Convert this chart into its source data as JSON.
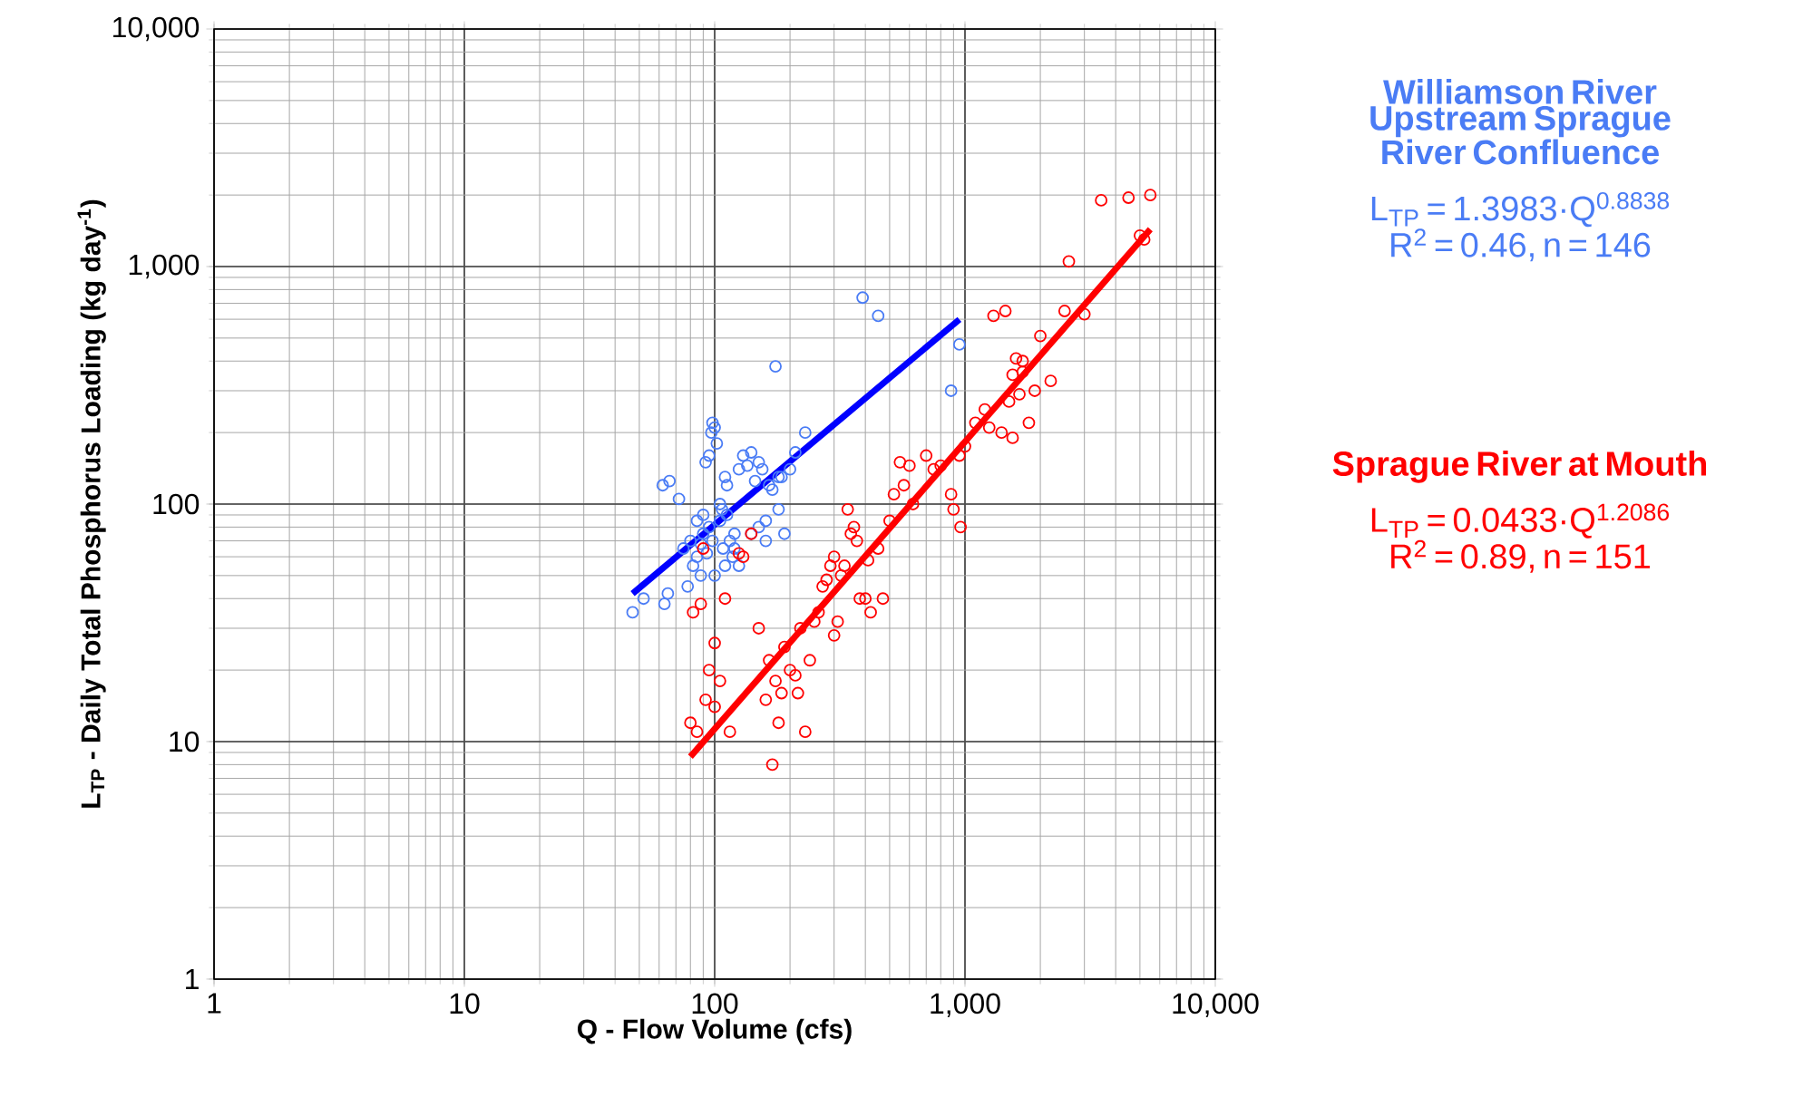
{
  "chart_data": {
    "type": "scatter",
    "log": "xy",
    "grid": true,
    "xlabel": "Q - Flow Volume (cfs)",
    "ylabel": "L$_{TP}$ - Daily Total Phosphorus Loading (kg day$^{-1}$)",
    "xlim": [
      1,
      10000
    ],
    "ylim": [
      1,
      10000
    ],
    "xticks": [
      1,
      10,
      100,
      {
        "value": 1000,
        "label": "1,000"
      },
      {
        "value": 10000,
        "label": "10,000"
      }
    ],
    "yticks": [
      1,
      10,
      100,
      {
        "value": 1000,
        "label": "1,000"
      },
      {
        "value": 10000,
        "label": "10,000"
      }
    ],
    "annotations": [
      "L$_{TP}$ = 1.3983·Q$^{0.8838}$",
      "R$^{2}$ = 0.46, n = 146",
      "L$_{TP}$ = 0.0433·Q$^{1.2086}$",
      "R$^{2}$ = 0.89, n = 151"
    ],
    "series": [
      {
        "name": "Williamson River Upstream Sprague River Confluence",
        "marker": "circle",
        "color": "#4a7cf5",
        "x": [
          47,
          52,
          63,
          65,
          62,
          66,
          72,
          75,
          78,
          80,
          82,
          85,
          88,
          90,
          92,
          95,
          97,
          98,
          100,
          102,
          105,
          107,
          110,
          112,
          115,
          118,
          120,
          125,
          130,
          135,
          140,
          145,
          150,
          155,
          160,
          165,
          170,
          175,
          180,
          185,
          190,
          120,
          110,
          100,
          95,
          90,
          85,
          105,
          112,
          108,
          98,
          93,
          88,
          125,
          140,
          150,
          160,
          230,
          390,
          450,
          950,
          880,
          210,
          200,
          180
        ],
        "values": [
          35,
          40,
          38,
          42,
          120,
          125,
          105,
          65,
          45,
          70,
          55,
          60,
          50,
          75,
          150,
          160,
          200,
          220,
          210,
          180,
          85,
          95,
          130,
          120,
          70,
          60,
          75,
          140,
          160,
          145,
          165,
          125,
          150,
          140,
          70,
          120,
          115,
          380,
          95,
          130,
          75,
          65,
          55,
          50,
          80,
          90,
          85,
          100,
          90,
          65,
          70,
          62,
          68,
          55,
          75,
          80,
          85,
          200,
          740,
          620,
          470,
          300,
          165,
          140,
          130
        ]
      },
      {
        "name": "Sprague River at Mouth",
        "marker": "circle",
        "color": "#ff0000",
        "x": [
          80,
          85,
          82,
          88,
          90,
          92,
          95,
          100,
          100,
          105,
          110,
          115,
          125,
          130,
          140,
          150,
          160,
          165,
          170,
          175,
          180,
          185,
          190,
          200,
          210,
          215,
          220,
          230,
          240,
          250,
          260,
          270,
          280,
          290,
          300,
          300,
          310,
          320,
          330,
          340,
          350,
          360,
          370,
          380,
          400,
          410,
          420,
          450,
          470,
          500,
          520,
          550,
          570,
          600,
          620,
          700,
          750,
          800,
          880,
          900,
          950,
          960,
          1000,
          1100,
          1200,
          1300,
          1400,
          1500,
          1550,
          1600,
          1700,
          1800,
          1900,
          2000,
          2200,
          2500,
          2600,
          3000,
          3500,
          4500,
          5000,
          5500,
          5200,
          1650,
          1550,
          1450,
          1250,
          1700
        ],
        "values": [
          12,
          11,
          35,
          38,
          65,
          15,
          20,
          26,
          14,
          18,
          40,
          11,
          62,
          60,
          75,
          30,
          15,
          22,
          8,
          18,
          12,
          16,
          25,
          20,
          19,
          16,
          30,
          11,
          22,
          32,
          35,
          45,
          48,
          55,
          60,
          28,
          32,
          50,
          55,
          95,
          75,
          80,
          70,
          40,
          40,
          58,
          35,
          65,
          40,
          85,
          110,
          150,
          120,
          145,
          100,
          160,
          140,
          145,
          110,
          95,
          160,
          80,
          175,
          220,
          250,
          620,
          200,
          270,
          350,
          410,
          400,
          220,
          300,
          510,
          330,
          650,
          1050,
          630,
          1900,
          1950,
          1350,
          2000,
          1300,
          290,
          190,
          650,
          210,
          360
        ]
      },
      {
        "type": "line",
        "color": "#0000ff",
        "x": [
          47,
          950
        ],
        "values": [
          42,
          599
        ]
      },
      {
        "type": "line",
        "color": "#ff0000",
        "x": [
          80,
          5500
        ],
        "values": [
          8.64,
          1435
        ]
      }
    ]
  }
}
